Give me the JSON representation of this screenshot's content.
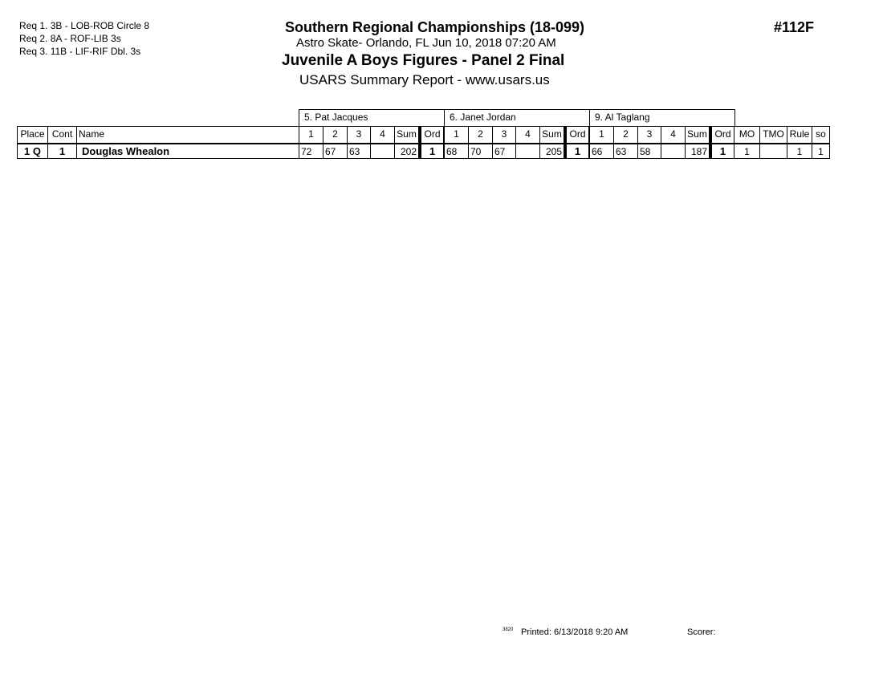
{
  "requirements": [
    "Req 1.  3B - LOB-ROB Circle 8",
    "Req 2.  8A - ROF-LIB 3s",
    "Req 3.  11B - LIF-RIF Dbl. 3s"
  ],
  "header": {
    "title": "Southern Regional Championships (18-099)",
    "location": "Astro Skate- Orlando, FL  Jun 10, 2018  07:20 AM",
    "event": "Juvenile A Boys Figures - Panel 2 Final",
    "report": "USARS Summary Report - www.usars.us",
    "event_number": "#112F"
  },
  "judges": [
    "5.  Pat Jacques",
    "6.  Janet Jordan",
    "9.  Al Taglang"
  ],
  "columns": {
    "place": "Place",
    "cont": "Cont",
    "name": "Name",
    "judge_cols": [
      "1",
      "2",
      "3",
      "4",
      "Sum",
      "Ord"
    ],
    "extra": [
      "MO",
      "TMO",
      "Rule",
      "so"
    ]
  },
  "rows": [
    {
      "place": "1 Q",
      "cont": "1",
      "name": "Douglas Whealon",
      "judges": [
        [
          "72",
          "67",
          "63",
          "",
          "202",
          "1"
        ],
        [
          "68",
          "70",
          "67",
          "",
          "205",
          "1"
        ],
        [
          "66",
          "63",
          "58",
          "",
          "187",
          "1"
        ]
      ],
      "extra": [
        "1",
        "",
        "1",
        "1"
      ]
    }
  ],
  "footer": {
    "code": "3820",
    "printed": "Printed:  6/13/2018  9:20 AM",
    "scorer": "Scorer:"
  }
}
